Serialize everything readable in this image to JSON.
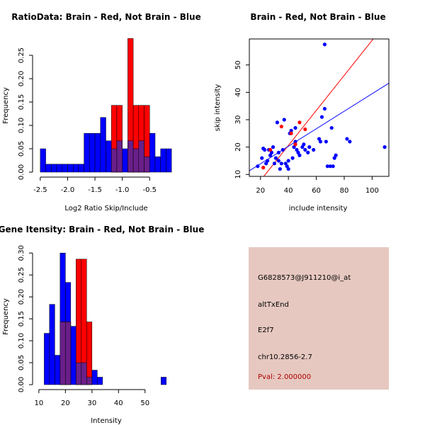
{
  "colors": {
    "red": "#ff0000",
    "blue": "#0000ff",
    "overlap": "#6a1f8a",
    "panel": "#e6c8c0",
    "pval": "#b00000"
  },
  "chart_data": [
    {
      "type": "bar",
      "title": "RatioData: Brain - Red, Not Brain - Blue",
      "xlabel": "Log2 Ratio Skip/Include",
      "ylabel": "Frequency",
      "xlim": [
        -2.55,
        -0.05
      ],
      "ylim": [
        0,
        0.285
      ],
      "xticks": [
        -2.5,
        -2.0,
        -1.5,
        -1.0,
        -0.5
      ],
      "xtick_labels": [
        "-2.5",
        "-2.0",
        "-1.5",
        "-1.0",
        "-0.5"
      ],
      "yticks": [
        0,
        0.05,
        0.1,
        0.15,
        0.2,
        0.25
      ],
      "ytick_labels": [
        "0.00",
        "0.05",
        "0.10",
        "0.15",
        "0.20",
        "0.25"
      ],
      "series": [
        {
          "name": "Not Brain",
          "color": "blue",
          "bars": [
            [
              -2.5,
              -2.4,
              0.05
            ],
            [
              -2.4,
              -2.3,
              0.017
            ],
            [
              -2.3,
              -2.2,
              0.017
            ],
            [
              -2.2,
              -2.1,
              0.017
            ],
            [
              -2.1,
              -2.0,
              0.017
            ],
            [
              -2.0,
              -1.9,
              0.017
            ],
            [
              -1.9,
              -1.8,
              0.017
            ],
            [
              -1.8,
              -1.7,
              0.017
            ],
            [
              -1.7,
              -1.6,
              0.083
            ],
            [
              -1.6,
              -1.5,
              0.083
            ],
            [
              -1.5,
              -1.4,
              0.083
            ],
            [
              -1.4,
              -1.3,
              0.117
            ],
            [
              -1.3,
              -1.2,
              0.067
            ],
            [
              -1.2,
              -1.1,
              0.05
            ],
            [
              -1.1,
              -1.0,
              0.067
            ],
            [
              -1.0,
              -0.9,
              0.05
            ],
            [
              -0.9,
              -0.8,
              0.067
            ],
            [
              -0.8,
              -0.7,
              0.05
            ],
            [
              -0.7,
              -0.6,
              0.067
            ],
            [
              -0.6,
              -0.5,
              0.033
            ],
            [
              -0.5,
              -0.4,
              0.083
            ],
            [
              -0.4,
              -0.3,
              0.033
            ],
            [
              -0.3,
              -0.2,
              0.05
            ],
            [
              -0.2,
              -0.1,
              0.05
            ]
          ]
        },
        {
          "name": "Brain",
          "color": "red",
          "bars": [
            [
              -1.2,
              -1.1,
              0.143
            ],
            [
              -1.1,
              -1.0,
              0.143
            ],
            [
              -0.9,
              -0.8,
              0.286
            ],
            [
              -0.8,
              -0.7,
              0.143
            ],
            [
              -0.7,
              -0.6,
              0.143
            ],
            [
              -0.6,
              -0.5,
              0.143
            ]
          ]
        }
      ]
    },
    {
      "type": "scatter",
      "title": "Brain - Red, Not Brain - Blue",
      "xlabel": "include intensity",
      "ylabel": "skip intensity",
      "xlim": [
        12,
        112
      ],
      "ylim": [
        9.3,
        59.5
      ],
      "xticks": [
        20,
        40,
        60,
        80,
        100
      ],
      "xtick_labels": [
        "20",
        "40",
        "60",
        "80",
        "100"
      ],
      "yticks": [
        10,
        20,
        30,
        40,
        50
      ],
      "ytick_labels": [
        "10",
        "20",
        "30",
        "40",
        "50"
      ],
      "fit_lines": [
        {
          "name": "Brain fit",
          "color": "red",
          "intercept": -5.0,
          "slope": 0.64
        },
        {
          "name": "Not Brain fit",
          "color": "blue",
          "intercept": 7.5,
          "slope": 0.32
        }
      ],
      "series": [
        {
          "name": "Not Brain",
          "color": "blue",
          "points": [
            [
              18,
              13
            ],
            [
              21,
              16
            ],
            [
              22,
              19.5
            ],
            [
              23,
              19
            ],
            [
              24,
              14
            ],
            [
              25,
              15
            ],
            [
              26,
              19
            ],
            [
              27,
              17
            ],
            [
              28,
              18
            ],
            [
              29,
              20
            ],
            [
              30,
              14
            ],
            [
              31,
              16
            ],
            [
              32,
              29
            ],
            [
              33,
              18
            ],
            [
              33,
              15
            ],
            [
              34,
              12
            ],
            [
              35,
              14
            ],
            [
              36,
              19
            ],
            [
              37,
              30
            ],
            [
              38,
              14
            ],
            [
              39,
              13
            ],
            [
              40,
              12
            ],
            [
              40,
              15
            ],
            [
              41,
              25
            ],
            [
              42,
              26
            ],
            [
              43,
              16
            ],
            [
              44,
              20
            ],
            [
              45,
              27
            ],
            [
              45,
              22
            ],
            [
              46,
              19
            ],
            [
              47,
              18
            ],
            [
              48,
              17
            ],
            [
              50,
              20
            ],
            [
              51,
              21
            ],
            [
              52,
              19
            ],
            [
              54,
              18
            ],
            [
              55,
              20
            ],
            [
              58,
              19
            ],
            [
              62,
              23
            ],
            [
              63,
              22
            ],
            [
              64,
              31
            ],
            [
              66,
              34
            ],
            [
              66,
              57.5
            ],
            [
              67,
              22
            ],
            [
              68,
              13
            ],
            [
              70,
              13
            ],
            [
              71,
              27
            ],
            [
              72,
              13
            ],
            [
              73,
              16
            ],
            [
              74,
              17
            ],
            [
              82,
              23
            ],
            [
              84,
              22
            ],
            [
              109,
              20
            ]
          ]
        },
        {
          "name": "Brain",
          "color": "red",
          "points": [
            [
              22,
              12.5
            ],
            [
              27,
              19
            ],
            [
              35,
              27.5
            ],
            [
              42,
              25
            ],
            [
              45,
              21
            ],
            [
              48,
              29
            ],
            [
              52,
              26.5
            ]
          ]
        }
      ]
    },
    {
      "type": "bar",
      "title": "Gene Itensity: Brain - Red, Not Brain - Blue",
      "xlabel": "Intensity",
      "ylabel": "Frequency",
      "xlim": [
        9.5,
        61
      ],
      "ylim": [
        0,
        0.31
      ],
      "xticks": [
        10,
        20,
        30,
        40,
        50
      ],
      "xtick_labels": [
        "10",
        "20",
        "30",
        "40",
        "50"
      ],
      "yticks": [
        0,
        0.05,
        0.1,
        0.15,
        0.2,
        0.25,
        0.3
      ],
      "ytick_labels": [
        "0.00",
        "0.05",
        "0.10",
        "0.15",
        "0.20",
        "0.25",
        "0.30"
      ],
      "series": [
        {
          "name": "Not Brain",
          "color": "blue",
          "bars": [
            [
              12,
              14,
              0.117
            ],
            [
              14,
              16,
              0.183
            ],
            [
              16,
              18,
              0.067
            ],
            [
              18,
              20,
              0.3
            ],
            [
              20,
              22,
              0.233
            ],
            [
              22,
              24,
              0.133
            ],
            [
              24,
              26,
              0.05
            ],
            [
              26,
              28,
              0.05
            ],
            [
              28,
              30,
              0.017
            ],
            [
              30,
              32,
              0.033
            ],
            [
              32,
              34,
              0.017
            ],
            [
              56,
              58,
              0.017
            ]
          ]
        },
        {
          "name": "Brain",
          "color": "red",
          "bars": [
            [
              18,
              20,
              0.143
            ],
            [
              20,
              22,
              0.143
            ],
            [
              24,
              26,
              0.286
            ],
            [
              26,
              28,
              0.286
            ],
            [
              28,
              30,
              0.143
            ]
          ]
        }
      ]
    }
  ],
  "info": {
    "probe": "G6828573@J911210@i_at",
    "event": "altTxEnd",
    "gene": "E2f7",
    "location": "chr10.2856-2.7",
    "pval": "Pval: 2.000000"
  }
}
